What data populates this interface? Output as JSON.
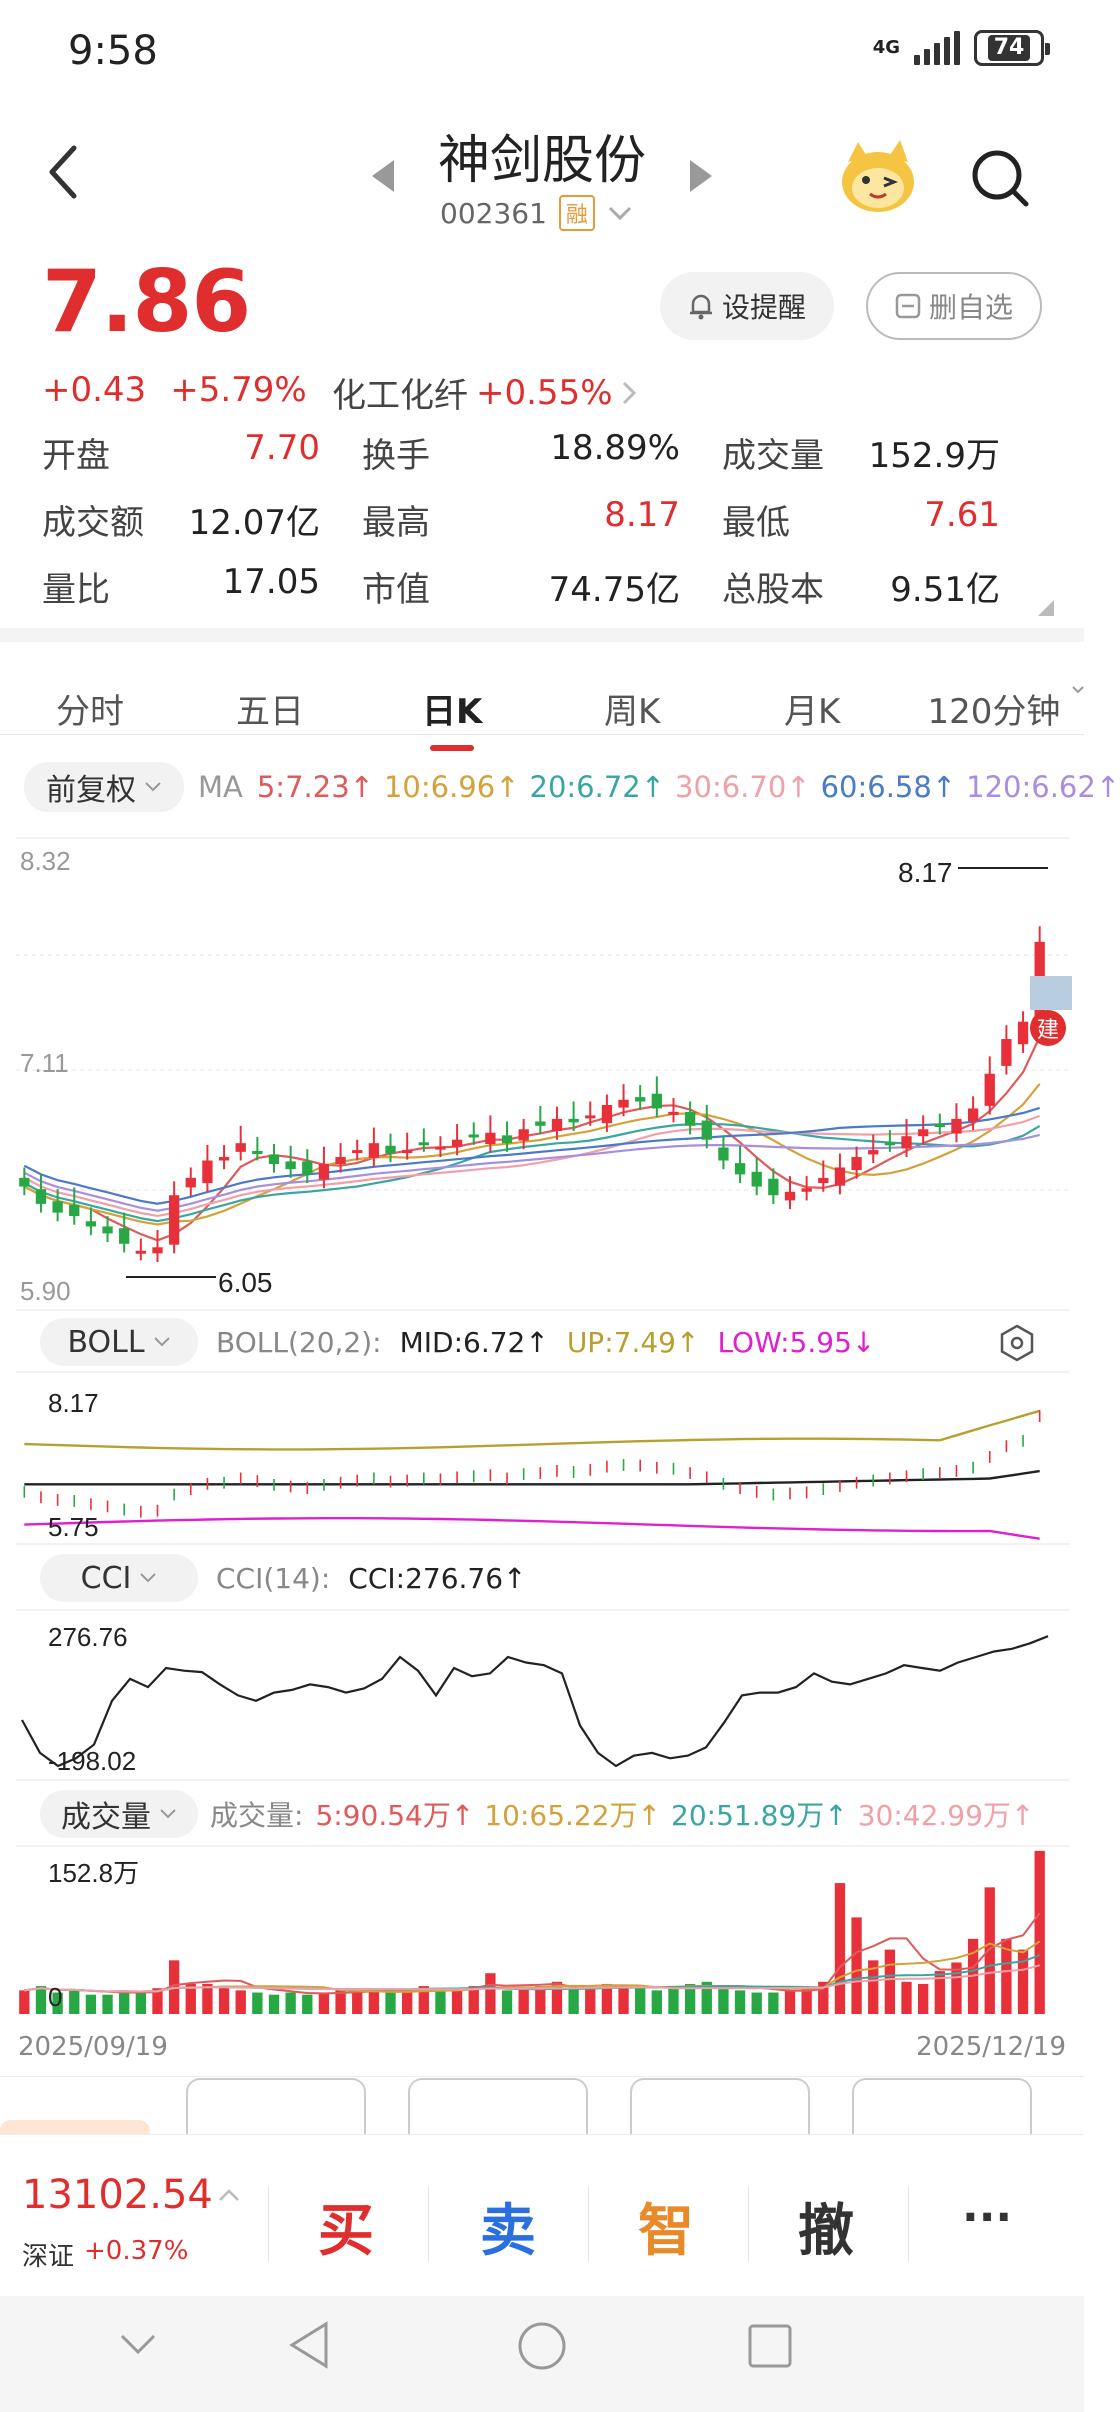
{
  "status": {
    "time": "9:58",
    "network": "4G",
    "battery": "74"
  },
  "header": {
    "stock_name": "神剑股份",
    "code": "002361",
    "margin_badge": "融"
  },
  "quote": {
    "price": "7.86",
    "change": "+0.43",
    "change_pct": "+5.79%",
    "sector_name": "化工化纤",
    "sector_pct": "+0.55%",
    "alert_label": "设提醒",
    "remove_label": "删自选"
  },
  "stats": [
    {
      "label": "开盘",
      "value": "7.70",
      "color": "#e02e2e"
    },
    {
      "label": "换手",
      "value": "18.89%",
      "color": "#222"
    },
    {
      "label": "成交量",
      "value": "152.9万",
      "color": "#222"
    },
    {
      "label": "成交额",
      "value": "12.07亿",
      "color": "#222"
    },
    {
      "label": "最高",
      "value": "8.17",
      "color": "#e02e2e"
    },
    {
      "label": "最低",
      "value": "7.61",
      "color": "#e02e2e"
    },
    {
      "label": "量比",
      "value": "17.05",
      "color": "#222"
    },
    {
      "label": "市值",
      "value": "74.75亿",
      "color": "#222"
    },
    {
      "label": "总股本",
      "value": "9.51亿",
      "color": "#222"
    }
  ],
  "tabs": [
    "分时",
    "五日",
    "日K",
    "周K",
    "月K",
    "120分钟"
  ],
  "active_tab": 2,
  "ma": {
    "adjust": "前复权",
    "label": "MA",
    "items": [
      {
        "text": "5:7.23↑",
        "color": "#e05a5a"
      },
      {
        "text": "10:6.96↑",
        "color": "#d4a23a"
      },
      {
        "text": "20:6.72↑",
        "color": "#3aa6a0"
      },
      {
        "text": "30:6.70↑",
        "color": "#f0a0a8"
      },
      {
        "text": "60:6.58↑",
        "color": "#4a7ac8"
      },
      {
        "text": "120:6.62↑",
        "color": "#a98ee0"
      }
    ]
  },
  "kline": {
    "axis_high": "8.32",
    "axis_mid": "7.11",
    "axis_low": "5.90",
    "marker_high": "8.17",
    "marker_low": "6.05",
    "build_badge": "建"
  },
  "boll": {
    "selector": "BOLL",
    "param": "BOLL(20,2):",
    "mid": "MID:6.72↑",
    "up": "UP:7.49↑",
    "low": "LOW:5.95↓",
    "axis_high": "8.17",
    "axis_low": "5.75"
  },
  "cci": {
    "selector": "CCI",
    "param": "CCI(14):",
    "value": "CCI:276.76↑",
    "axis_high": "276.76",
    "axis_low": "-198.02"
  },
  "volume": {
    "selector": "成交量",
    "label": "成交量:",
    "items": [
      {
        "text": "5:90.54万↑",
        "color": "#e05a5a"
      },
      {
        "text": "10:65.22万↑",
        "color": "#d4a23a"
      },
      {
        "text": "20:51.89万↑",
        "color": "#3aa6a0"
      },
      {
        "text": "30:42.99万↑",
        "color": "#f0a0a8"
      }
    ],
    "axis_high": "152.8万",
    "axis_zero": "0"
  },
  "dates": {
    "start": "2025/09/19",
    "end": "2025/12/19"
  },
  "bottom": {
    "index_value": "13102.54",
    "index_name": "深证",
    "index_pct": "+0.37%",
    "buy": "买",
    "sell": "卖",
    "smart": "智",
    "cancel": "撤",
    "more": "···"
  },
  "colors": {
    "up": "#e8303a",
    "down": "#27a845",
    "accent": "#e02e2e"
  }
}
